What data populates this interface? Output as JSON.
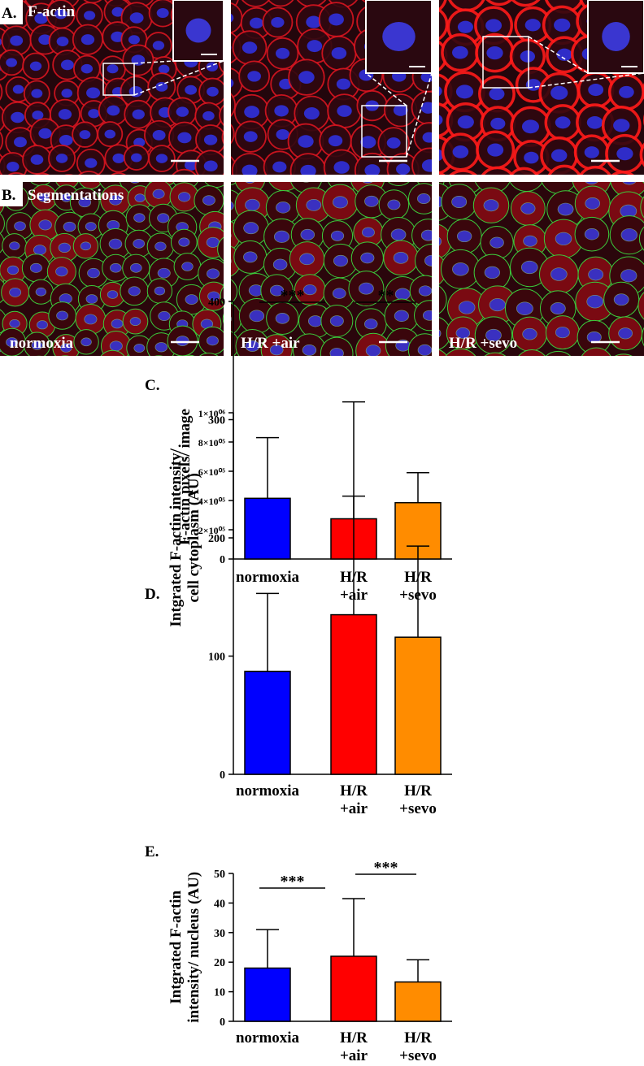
{
  "panels": {
    "a": {
      "label": "A.",
      "title": "F-actin"
    },
    "b": {
      "label": "B.",
      "title": "Segmentations",
      "conditions": [
        "normoxia",
        "H/R +air",
        "H/R +sevo"
      ]
    }
  },
  "chart_data": [
    {
      "type": "bar",
      "label": "C.",
      "ylabel": "F-actin pixels/ image",
      "categories": [
        "normoxia",
        "H/R\n+air",
        "H/R\n+sevo"
      ],
      "values": [
        415000,
        275000,
        385000
      ],
      "errors": [
        415000,
        155000,
        205000
      ],
      "colors": [
        "#0000ff",
        "#ff0000",
        "#ff8c00"
      ],
      "ylim": [
        0,
        1000000
      ],
      "yticks": [
        0,
        {
          "value": 200000,
          "label": "2×10⁰⁵"
        },
        {
          "value": 400000,
          "label": "4×10⁰⁵"
        },
        {
          "value": 600000,
          "label": "6×10⁰⁵"
        },
        {
          "value": 800000,
          "label": "8×10⁰⁵"
        },
        {
          "value": 1000000,
          "label": "1×10⁰⁶"
        }
      ],
      "annotations": []
    },
    {
      "type": "bar",
      "label": "D.",
      "ylabel": "Intgrated F-actin intensity/\ncell cytoplasm (AU)",
      "categories": [
        "normoxia",
        "H/R\n+air",
        "H/R\n+sevo"
      ],
      "values": [
        87,
        135,
        116
      ],
      "errors": [
        66,
        180,
        77
      ],
      "colors": [
        "#0000ff",
        "#ff0000",
        "#ff8c00"
      ],
      "ylim": [
        0,
        400
      ],
      "yticks": [
        0,
        100,
        200,
        300,
        400
      ],
      "annotations": [
        "***",
        "**"
      ]
    },
    {
      "type": "bar",
      "label": "E.",
      "ylabel": "Intgrated F-actin\nintensity/ nucleus (AU)",
      "categories": [
        "normoxia",
        "H/R\n+air",
        "H/R\n+sevo"
      ],
      "values": [
        18,
        22,
        13.3
      ],
      "errors": [
        13,
        19.5,
        7.5
      ],
      "colors": [
        "#0000ff",
        "#ff0000",
        "#ff8c00"
      ],
      "ylim": [
        0,
        50
      ],
      "yticks": [
        0,
        10,
        20,
        30,
        40,
        50
      ],
      "annotations": [
        "***",
        "***"
      ]
    }
  ]
}
